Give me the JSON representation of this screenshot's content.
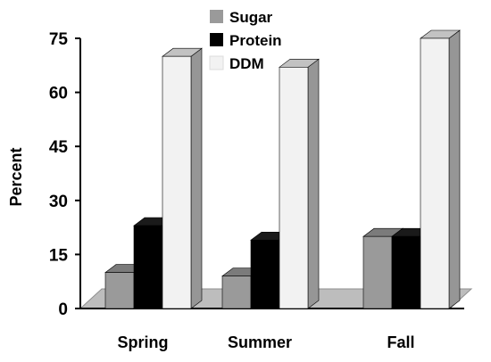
{
  "chart_data": {
    "type": "bar",
    "style": "3d-clustered-column",
    "title": "",
    "xlabel": "",
    "ylabel": "Percent",
    "ylim": [
      0,
      75
    ],
    "yticks": [
      0,
      15,
      30,
      45,
      60,
      75
    ],
    "categories": [
      "Spring",
      "Summer",
      "Fall"
    ],
    "series": [
      {
        "name": "Sugar",
        "color": "#9a9a9a",
        "values": [
          10,
          9,
          20
        ]
      },
      {
        "name": "Protein",
        "color": "#000000",
        "values": [
          23,
          19,
          20
        ]
      },
      {
        "name": "DDM",
        "color": "#f2f2f2",
        "values": [
          70,
          67,
          75
        ]
      }
    ],
    "legend_position": "top",
    "grid": false,
    "floor_color": "#bdbdbd"
  }
}
